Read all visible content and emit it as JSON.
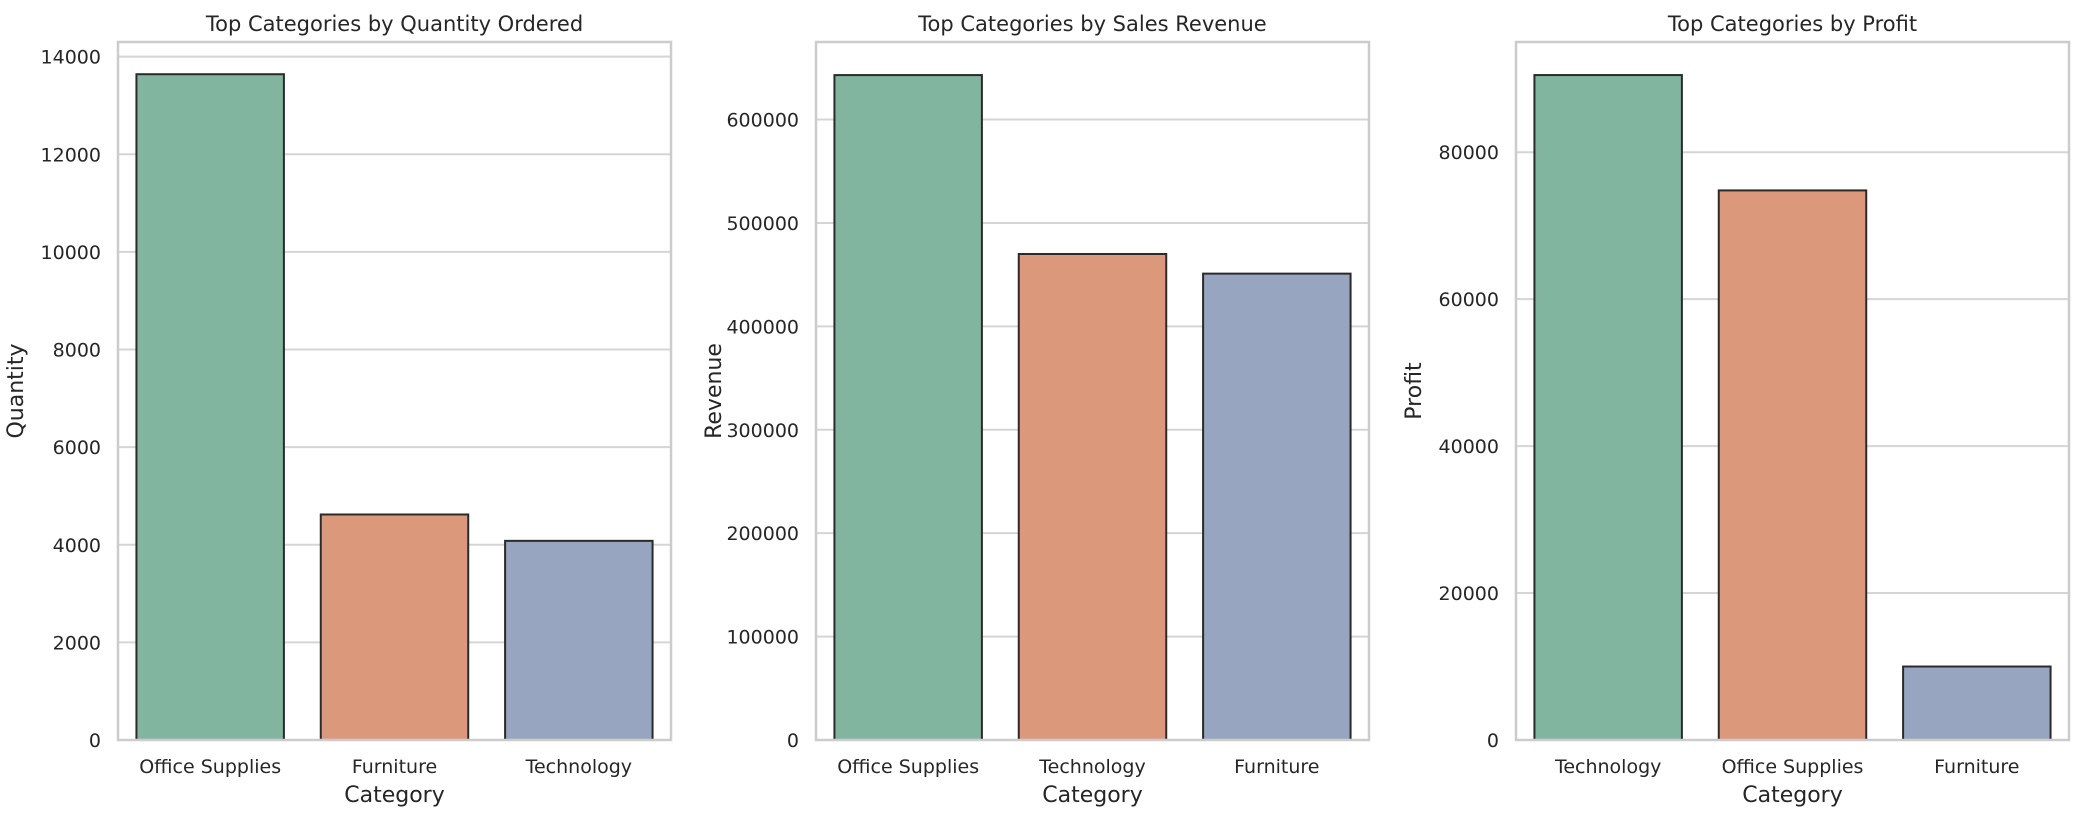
{
  "chart_data": [
    {
      "type": "bar",
      "title": "Top Categories by Quantity Ordered",
      "xlabel": "Category",
      "ylabel": "Quantity",
      "categories": [
        "Office Supplies",
        "Furniture",
        "Technology"
      ],
      "values": [
        13640,
        4620,
        4080
      ],
      "ylim": [
        0,
        14300
      ],
      "yticks": [
        0,
        2000,
        4000,
        6000,
        8000,
        10000,
        12000,
        14000
      ],
      "ytick_labels": [
        "0",
        "2000",
        "4000",
        "6000",
        "8000",
        "10000",
        "12000",
        "14000"
      ],
      "colors": [
        "#82b5a0",
        "#dc987a",
        "#98a5c0"
      ],
      "grid": "horizontal"
    },
    {
      "type": "bar",
      "title": "Top Categories by Sales Revenue",
      "xlabel": "Category",
      "ylabel": "Revenue",
      "categories": [
        "Office Supplies",
        "Technology",
        "Furniture"
      ],
      "values": [
        643000,
        470000,
        451000
      ],
      "ylim": [
        0,
        675000
      ],
      "yticks": [
        0,
        100000,
        200000,
        300000,
        400000,
        500000,
        600000
      ],
      "ytick_labels": [
        "0",
        "100000",
        "200000",
        "300000",
        "400000",
        "500000",
        "600000"
      ],
      "colors": [
        "#82b5a0",
        "#dc987a",
        "#98a5c0"
      ],
      "grid": "horizontal"
    },
    {
      "type": "bar",
      "title": "Top Categories by Profit",
      "xlabel": "Category",
      "ylabel": "Profit",
      "categories": [
        "Technology",
        "Office Supplies",
        "Furniture"
      ],
      "values": [
        90500,
        74800,
        10000
      ],
      "ylim": [
        0,
        95000
      ],
      "yticks": [
        0,
        20000,
        40000,
        60000,
        80000
      ],
      "ytick_labels": [
        "0",
        "20000",
        "40000",
        "60000",
        "80000"
      ],
      "colors": [
        "#82b5a0",
        "#dc987a",
        "#98a5c0"
      ],
      "grid": "horizontal"
    }
  ]
}
